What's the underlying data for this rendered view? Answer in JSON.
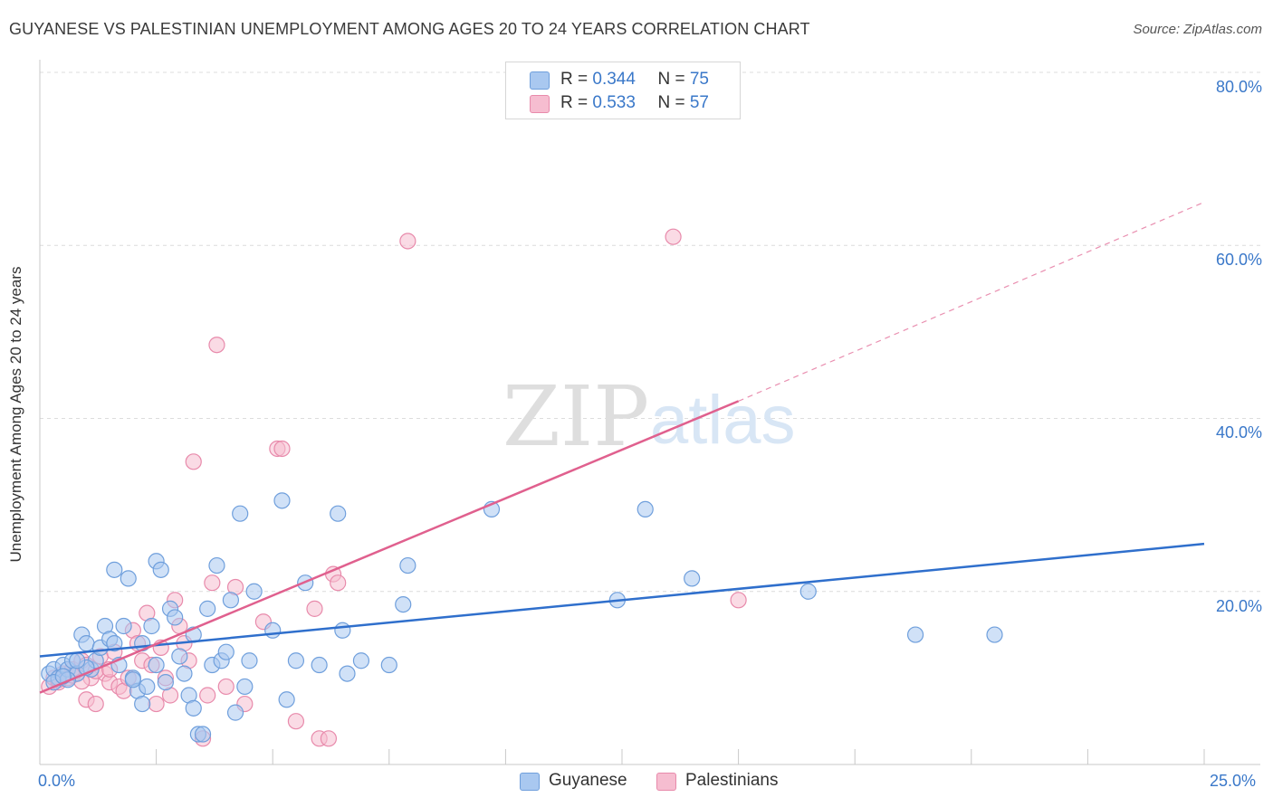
{
  "header": {
    "title": "GUYANESE VS PALESTINIAN UNEMPLOYMENT AMONG AGES 20 TO 24 YEARS CORRELATION CHART",
    "source": "Source: ZipAtlas.com"
  },
  "watermark": {
    "zip": "ZIP",
    "atlas": "atlas"
  },
  "legend": {
    "guyanese": {
      "r_label": "R = ",
      "r_value": "0.344",
      "n_label": "N = ",
      "n_value": "75"
    },
    "palestinians": {
      "r_label": "R = ",
      "r_value": "0.533",
      "n_label": "N = ",
      "n_value": "57"
    }
  },
  "colors": {
    "guyanese_fill": "#a9c8f0",
    "guyanese_stroke": "#6f9fdc",
    "guyanese_line": "#2f6fcc",
    "palestinian_fill": "#f6bdd0",
    "palestinian_stroke": "#e88aab",
    "palestinian_line": "#e0608e",
    "tick_text": "#3a78c9"
  },
  "chart_data": {
    "type": "scatter",
    "title": "GUYANESE VS PALESTINIAN UNEMPLOYMENT AMONG AGES 20 TO 24 YEARS CORRELATION CHART",
    "xlabel": "",
    "ylabel": "Unemployment Among Ages 20 to 24 years",
    "xlim": [
      0,
      25
    ],
    "ylim": [
      0,
      80
    ],
    "x_tick_labels": [
      "0.0%",
      "25.0%"
    ],
    "y_ticks": [
      20,
      40,
      60,
      80
    ],
    "y_tick_labels": [
      "20.0%",
      "40.0%",
      "60.0%",
      "80.0%"
    ],
    "grid": true,
    "legend_bottom": [
      "Guyanese",
      "Palestinians"
    ],
    "series": [
      {
        "name": "Guyanese",
        "trend": {
          "x0": 0,
          "y0": 12.5,
          "x1": 25,
          "y1": 25.5
        },
        "points": [
          [
            0.2,
            10.5
          ],
          [
            0.3,
            11
          ],
          [
            0.4,
            10
          ],
          [
            0.5,
            11.5
          ],
          [
            0.6,
            11
          ],
          [
            0.7,
            12
          ],
          [
            0.8,
            10.5
          ],
          [
            0.9,
            15
          ],
          [
            1.0,
            14
          ],
          [
            1.1,
            11
          ],
          [
            1.2,
            12
          ],
          [
            1.3,
            13.5
          ],
          [
            1.4,
            16
          ],
          [
            1.5,
            14.5
          ],
          [
            1.6,
            14
          ],
          [
            1.6,
            22.5
          ],
          [
            1.8,
            16
          ],
          [
            1.9,
            21.5
          ],
          [
            2.0,
            10
          ],
          [
            2.1,
            8.5
          ],
          [
            2.2,
            14
          ],
          [
            2.2,
            7
          ],
          [
            2.3,
            9
          ],
          [
            2.4,
            16
          ],
          [
            2.5,
            11.5
          ],
          [
            2.5,
            23.5
          ],
          [
            2.6,
            22.5
          ],
          [
            2.7,
            9.5
          ],
          [
            2.8,
            18
          ],
          [
            2.9,
            17
          ],
          [
            3.0,
            12.5
          ],
          [
            3.1,
            10.5
          ],
          [
            3.2,
            8
          ],
          [
            3.3,
            6.5
          ],
          [
            3.3,
            15
          ],
          [
            3.4,
            3.5
          ],
          [
            3.5,
            3.5
          ],
          [
            3.6,
            18
          ],
          [
            3.7,
            11.5
          ],
          [
            3.8,
            23
          ],
          [
            3.9,
            12
          ],
          [
            4.0,
            13
          ],
          [
            4.1,
            19
          ],
          [
            4.2,
            6
          ],
          [
            4.3,
            29
          ],
          [
            4.4,
            9
          ],
          [
            4.5,
            12
          ],
          [
            4.6,
            20
          ],
          [
            5.0,
            15.5
          ],
          [
            5.2,
            30.5
          ],
          [
            5.3,
            7.5
          ],
          [
            5.5,
            12
          ],
          [
            5.7,
            21
          ],
          [
            6.0,
            11.5
          ],
          [
            6.4,
            29
          ],
          [
            6.5,
            15.5
          ],
          [
            6.6,
            10.5
          ],
          [
            6.9,
            12
          ],
          [
            7.5,
            11.5
          ],
          [
            7.8,
            18.5
          ],
          [
            7.9,
            23
          ],
          [
            9.7,
            29.5
          ],
          [
            12.4,
            19
          ],
          [
            13.0,
            29.5
          ],
          [
            14.0,
            21.5
          ],
          [
            16.5,
            20
          ],
          [
            18.8,
            15
          ],
          [
            20.5,
            15
          ],
          [
            0.3,
            9.5
          ],
          [
            0.6,
            9.8
          ],
          [
            1.0,
            11.2
          ],
          [
            0.8,
            12
          ],
          [
            1.7,
            11.5
          ],
          [
            2.0,
            9.8
          ],
          [
            0.5,
            10.2
          ]
        ]
      },
      {
        "name": "Palestinians",
        "trend": {
          "x0": 0,
          "y0": 8.3,
          "x1": 15,
          "y1": 42,
          "dash_x1": 25,
          "dash_y1": 65
        },
        "points": [
          [
            0.2,
            9
          ],
          [
            0.3,
            10
          ],
          [
            0.4,
            9.5
          ],
          [
            0.5,
            10.5
          ],
          [
            0.6,
            10
          ],
          [
            0.7,
            11
          ],
          [
            0.8,
            10.5
          ],
          [
            0.9,
            12
          ],
          [
            1.0,
            11.5
          ],
          [
            1.0,
            7.5
          ],
          [
            1.1,
            10
          ],
          [
            1.2,
            7
          ],
          [
            1.3,
            12.5
          ],
          [
            1.4,
            10.5
          ],
          [
            1.5,
            9.5
          ],
          [
            1.6,
            13
          ],
          [
            1.7,
            9
          ],
          [
            1.8,
            8.5
          ],
          [
            1.9,
            10
          ],
          [
            2.0,
            15.5
          ],
          [
            2.1,
            14
          ],
          [
            2.2,
            12
          ],
          [
            2.3,
            17.5
          ],
          [
            2.4,
            11.5
          ],
          [
            2.5,
            7
          ],
          [
            2.6,
            13.5
          ],
          [
            2.7,
            10
          ],
          [
            2.8,
            8
          ],
          [
            2.9,
            19
          ],
          [
            3.0,
            16
          ],
          [
            3.1,
            14
          ],
          [
            3.2,
            12
          ],
          [
            3.3,
            35
          ],
          [
            3.5,
            3
          ],
          [
            3.6,
            8
          ],
          [
            3.7,
            21
          ],
          [
            3.8,
            48.5
          ],
          [
            4.0,
            9
          ],
          [
            4.2,
            20.5
          ],
          [
            4.4,
            7
          ],
          [
            4.8,
            16.5
          ],
          [
            5.1,
            36.5
          ],
          [
            5.2,
            36.5
          ],
          [
            5.5,
            5
          ],
          [
            5.9,
            18
          ],
          [
            6.0,
            3
          ],
          [
            6.2,
            3
          ],
          [
            6.3,
            22
          ],
          [
            6.4,
            21
          ],
          [
            7.9,
            60.5
          ],
          [
            13.6,
            61
          ],
          [
            15.0,
            19
          ],
          [
            0.4,
            9.8
          ],
          [
            0.7,
            10.3
          ],
          [
            1.2,
            10.8
          ],
          [
            1.5,
            11
          ],
          [
            0.9,
            9.6
          ]
        ]
      }
    ]
  },
  "x_axis": {
    "min_label": "0.0%",
    "max_label": "25.0%"
  },
  "y_axis_title": "Unemployment Among Ages 20 to 24 years",
  "y_axis_ticks": [
    "20.0%",
    "40.0%",
    "60.0%",
    "80.0%"
  ],
  "bottom_legend": {
    "guyanese": "Guyanese",
    "palestinians": "Palestinians"
  }
}
